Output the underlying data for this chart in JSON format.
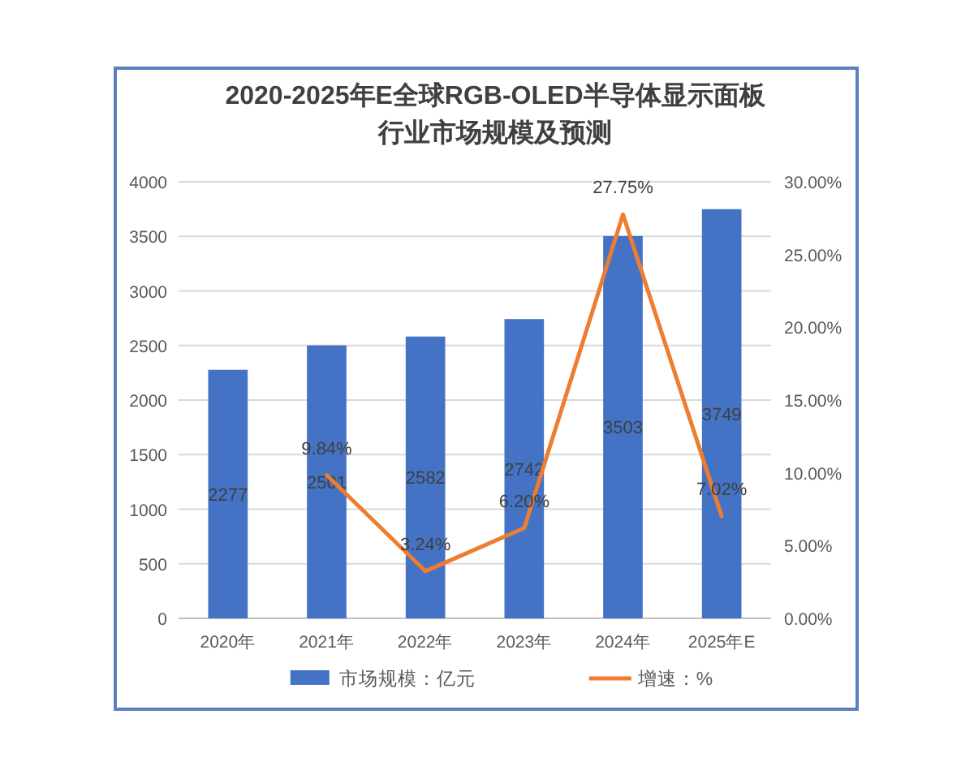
{
  "chart_data": {
    "type": "bar",
    "title": "2020-2025年E全球RGB-OLED半导体显示面板行业市场规模及预测",
    "categories": [
      "2020年",
      "2021年",
      "2022年",
      "2023年",
      "2024年",
      "2025年E"
    ],
    "series": [
      {
        "name": "市场规模：亿元",
        "color": "#4472c4",
        "values": [
          2277,
          2501,
          2582,
          2742,
          3503,
          3749
        ],
        "value_labels": [
          "2277",
          "2501",
          "2582",
          "2742",
          "3503",
          "3749"
        ]
      },
      {
        "name": "增速：%",
        "type": "line",
        "axis": "y2",
        "color": "#ed7d31",
        "values": [
          null,
          9.84,
          3.24,
          6.2,
          27.75,
          7.02
        ],
        "value_labels": [
          null,
          "9.84%",
          "3.24%",
          "6.20%",
          "27.75%",
          "7.02%"
        ]
      }
    ],
    "ylim": [
      0,
      4000
    ],
    "yticks": [
      0,
      500,
      1000,
      1500,
      2000,
      2500,
      3000,
      3500,
      4000
    ],
    "y2lim": [
      0,
      30
    ],
    "y2ticks": [
      {
        "value": 0,
        "label": "0.00%"
      },
      {
        "value": 5,
        "label": "5.00%"
      },
      {
        "value": 10,
        "label": "10.00%"
      },
      {
        "value": 15,
        "label": "15.00%"
      },
      {
        "value": 20,
        "label": "20.00%"
      },
      {
        "value": 25,
        "label": "25.00%"
      },
      {
        "value": 30,
        "label": "30.00%"
      }
    ],
    "grid": "y",
    "legend": "bottom"
  }
}
